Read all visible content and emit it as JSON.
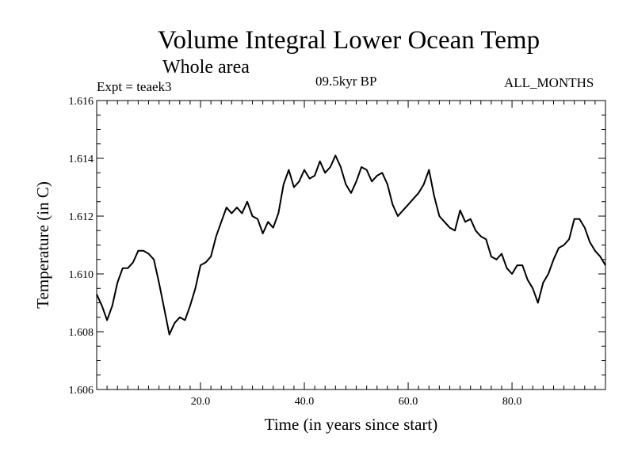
{
  "chart_data": {
    "type": "line",
    "title": "Volume Integral Lower Ocean Temp",
    "subtitle": "Whole area",
    "annotations": {
      "left": "Expt = teaek3",
      "center": "09.5kyr BP",
      "right": "ALL_MONTHS"
    },
    "xlabel": "Time (in years since start)",
    "ylabel": "Temperature (in C)",
    "xlim": [
      0,
      98
    ],
    "ylim": [
      1.606,
      1.616
    ],
    "x_ticks": [
      20,
      40,
      60,
      80
    ],
    "x_tick_labels": [
      "20.0",
      "40.0",
      "60.0",
      "80.0"
    ],
    "y_ticks": [
      1.606,
      1.608,
      1.61,
      1.612,
      1.614,
      1.616
    ],
    "y_tick_labels": [
      "1.606",
      "1.608",
      "1.610",
      "1.612",
      "1.614",
      "1.616"
    ],
    "grid": false,
    "series": [
      {
        "name": "Temperature",
        "x": [
          0,
          1,
          2,
          3,
          4,
          5,
          6,
          7,
          8,
          9,
          10,
          11,
          12,
          13,
          14,
          15,
          16,
          17,
          18,
          19,
          20,
          21,
          22,
          23,
          24,
          25,
          26,
          27,
          28,
          29,
          30,
          31,
          32,
          33,
          34,
          35,
          36,
          37,
          38,
          39,
          40,
          41,
          42,
          43,
          44,
          45,
          46,
          47,
          48,
          49,
          50,
          51,
          52,
          53,
          54,
          55,
          56,
          57,
          58,
          59,
          60,
          61,
          62,
          63,
          64,
          65,
          66,
          67,
          68,
          69,
          70,
          71,
          72,
          73,
          74,
          75,
          76,
          77,
          78,
          79,
          80,
          81,
          82,
          83,
          84,
          85,
          86,
          87,
          88,
          89,
          90,
          91,
          92,
          93,
          94,
          95,
          96,
          97,
          98
        ],
        "values": [
          1.6093,
          1.6089,
          1.6084,
          1.6089,
          1.6097,
          1.6102,
          1.6102,
          1.6104,
          1.6108,
          1.6108,
          1.6107,
          1.6105,
          1.6097,
          1.6088,
          1.6079,
          1.6083,
          1.6085,
          1.6084,
          1.6089,
          1.6095,
          1.6103,
          1.6104,
          1.6106,
          1.6113,
          1.6118,
          1.6123,
          1.6121,
          1.6123,
          1.6121,
          1.6125,
          1.612,
          1.6119,
          1.6114,
          1.6118,
          1.6116,
          1.6121,
          1.6131,
          1.6136,
          1.613,
          1.6132,
          1.6136,
          1.6133,
          1.6134,
          1.6139,
          1.6135,
          1.6137,
          1.6141,
          1.6137,
          1.6131,
          1.6128,
          1.6132,
          1.6137,
          1.6136,
          1.6132,
          1.6134,
          1.6135,
          1.6131,
          1.6124,
          1.612,
          1.6122,
          1.6124,
          1.6126,
          1.6128,
          1.6131,
          1.6136,
          1.6127,
          1.612,
          1.6118,
          1.6116,
          1.6115,
          1.6122,
          1.6118,
          1.6119,
          1.6115,
          1.6113,
          1.6112,
          1.6106,
          1.6105,
          1.6107,
          1.6102,
          1.61,
          1.6103,
          1.6103,
          1.6098,
          1.6095,
          1.609,
          1.6097,
          1.61,
          1.6105,
          1.6109,
          1.611,
          1.6112,
          1.6119,
          1.6119,
          1.6116,
          1.6111,
          1.6108,
          1.6106,
          1.6103
        ]
      }
    ]
  }
}
